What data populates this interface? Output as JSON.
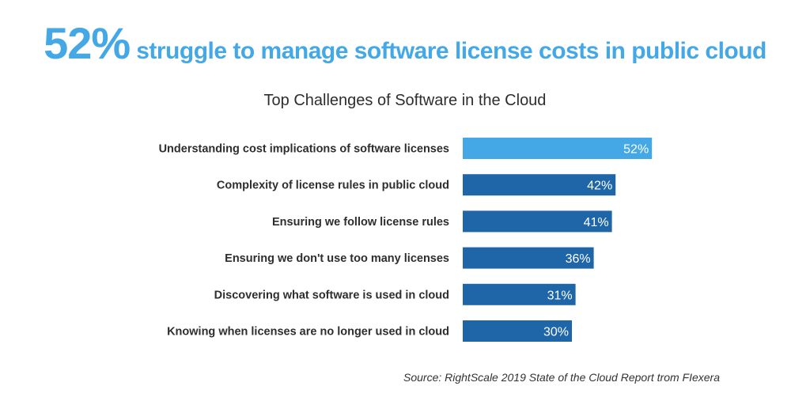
{
  "headline": {
    "stat": "52%",
    "text": "struggle to manage software license costs in public cloud"
  },
  "chart_data": {
    "type": "bar",
    "orientation": "horizontal",
    "title": "Top Challenges of Software in the Cloud",
    "categories": [
      "Understanding cost implications of software licenses",
      "Complexity of license rules in public cloud",
      "Ensuring we follow license rules",
      "Ensuring we don't use too many licenses",
      "Discovering what software is used in cloud",
      "Knowing when licenses are no longer used in cloud"
    ],
    "values": [
      52,
      42,
      41,
      36,
      31,
      30
    ],
    "value_labels": [
      "52%",
      "42%",
      "41%",
      "36%",
      "31%",
      "30%"
    ],
    "unit": "%",
    "xlim": [
      0,
      100
    ],
    "grid": false,
    "highlight_index": 0,
    "colors": {
      "highlight": "#45a8e6",
      "default": "#1f66a8"
    }
  },
  "source": "Source: RightScale 2019 State of the Cloud Report trom FIexera",
  "colors": {
    "headline": "#45a8e6",
    "text": "#2e2e2e"
  }
}
